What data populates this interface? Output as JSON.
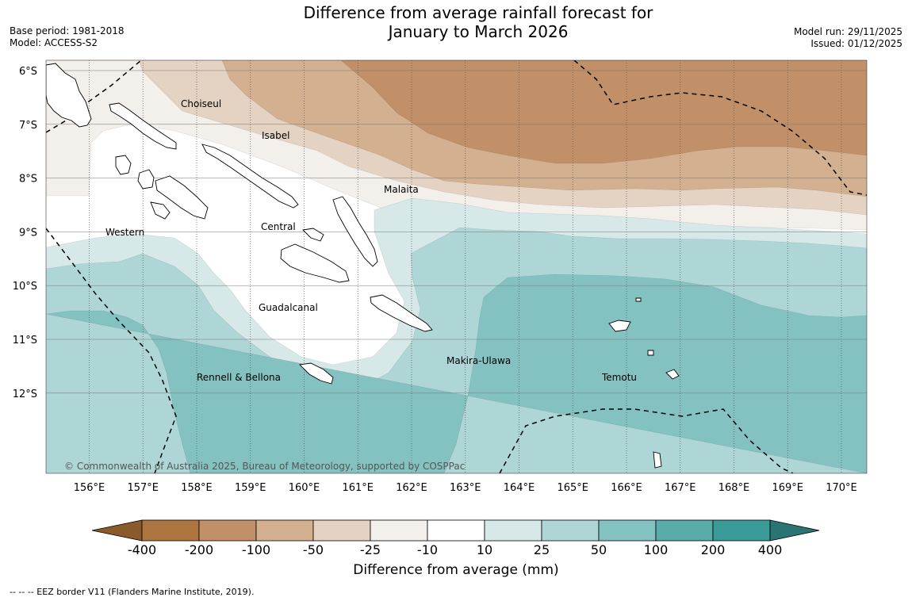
{
  "title": {
    "line1": "Difference from average rainfall forecast for",
    "line2": "January to March 2026"
  },
  "meta_left": {
    "base_period": "Base period: 1981-2018",
    "model": "Model: ACCESS-S2"
  },
  "meta_right": {
    "model_run": "Model run: 29/11/2025",
    "issued": "Issued: 01/12/2025"
  },
  "map": {
    "lon_range": [
      155.2,
      170.5
    ],
    "lat_range": [
      -5.8,
      -13.5
    ],
    "lat_ticks": [
      "6°S",
      "7°S",
      "8°S",
      "9°S",
      "10°S",
      "11°S",
      "12°S"
    ],
    "lon_ticks": [
      "156°E",
      "157°E",
      "158°E",
      "159°E",
      "160°E",
      "161°E",
      "162°E",
      "163°E",
      "164°E",
      "165°E",
      "166°E",
      "167°E",
      "168°E",
      "169°E",
      "170°E"
    ],
    "region_labels": [
      "Choiseul",
      "Isabel",
      "Malaita",
      "Western",
      "Central",
      "Guadalcanal",
      "Makira-Ulawa",
      "Rennell & Bellona",
      "Temotu"
    ],
    "copyright": "© Commonwealth of Australia 2025, Bureau of Meteorology, supported by COSPPac",
    "colors": {
      "below_400": "#8a5a2b",
      "n400_200": "#ad7640",
      "n200_100": "#c19068",
      "n100_50": "#d3b08f",
      "n50_25": "#e4d3c3",
      "n25_10": "#f3efea",
      "n10_10": "#ffffff",
      "p10_25": "#d6e8e7",
      "p25_50": "#aed6d6",
      "p50_100": "#84c2c2",
      "p100_200": "#5aacab",
      "p200_400": "#3a9b98",
      "above_400": "#2a7473"
    }
  },
  "colorbar": {
    "tick_labels": [
      "-400",
      "-200",
      "-100",
      "-50",
      "-25",
      "-10",
      "10",
      "25",
      "50",
      "100",
      "200",
      "400"
    ],
    "label": "Difference from average (mm)"
  },
  "footnote": "--  --  -- EEZ border V11 (Flanders Marine Institute, 2019)."
}
